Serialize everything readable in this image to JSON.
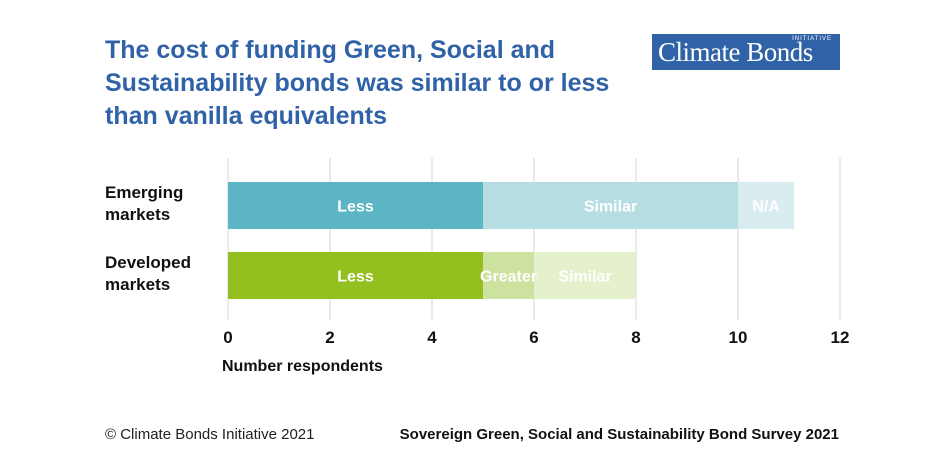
{
  "header": {
    "title": "The cost of funding Green, Social and Sustainability bonds was similar to or less than vanilla equivalents",
    "logo": {
      "text": "Climate Bonds",
      "subtext": "INITIATIVE"
    }
  },
  "footer": {
    "copyright": "© Climate Bonds Initiative 2021",
    "source": "Sovereign Green, Social and Sustainability Bond Survey 2021"
  },
  "chart_data": {
    "type": "bar",
    "orientation": "horizontal",
    "stacked": true,
    "categories": [
      "Emerging markets",
      "Developed markets"
    ],
    "xlabel": "Number respondents",
    "xlim": [
      0,
      12
    ],
    "xticks": [
      0,
      2,
      4,
      6,
      8,
      10,
      12
    ],
    "grid": true,
    "legend": "none",
    "rows": [
      {
        "category": "Emerging markets",
        "segments": [
          {
            "label": "Less",
            "value": 5,
            "color": "#5bb5c5"
          },
          {
            "label": "Similar",
            "value": 5,
            "color": "#b6dde2"
          },
          {
            "label": "N/A",
            "value": 1.1,
            "color": "#d9edf0"
          }
        ]
      },
      {
        "category": "Developed markets",
        "segments": [
          {
            "label": "Less",
            "value": 5,
            "color": "#93c01f"
          },
          {
            "label": "Greater",
            "value": 1,
            "color": "#cde29e"
          },
          {
            "label": "Similar",
            "value": 2,
            "color": "#e5f0cd"
          }
        ]
      }
    ],
    "colors": {
      "grid": "#d4d4d4",
      "axis_text": "#111111",
      "segment_text": "#ffffff"
    }
  }
}
